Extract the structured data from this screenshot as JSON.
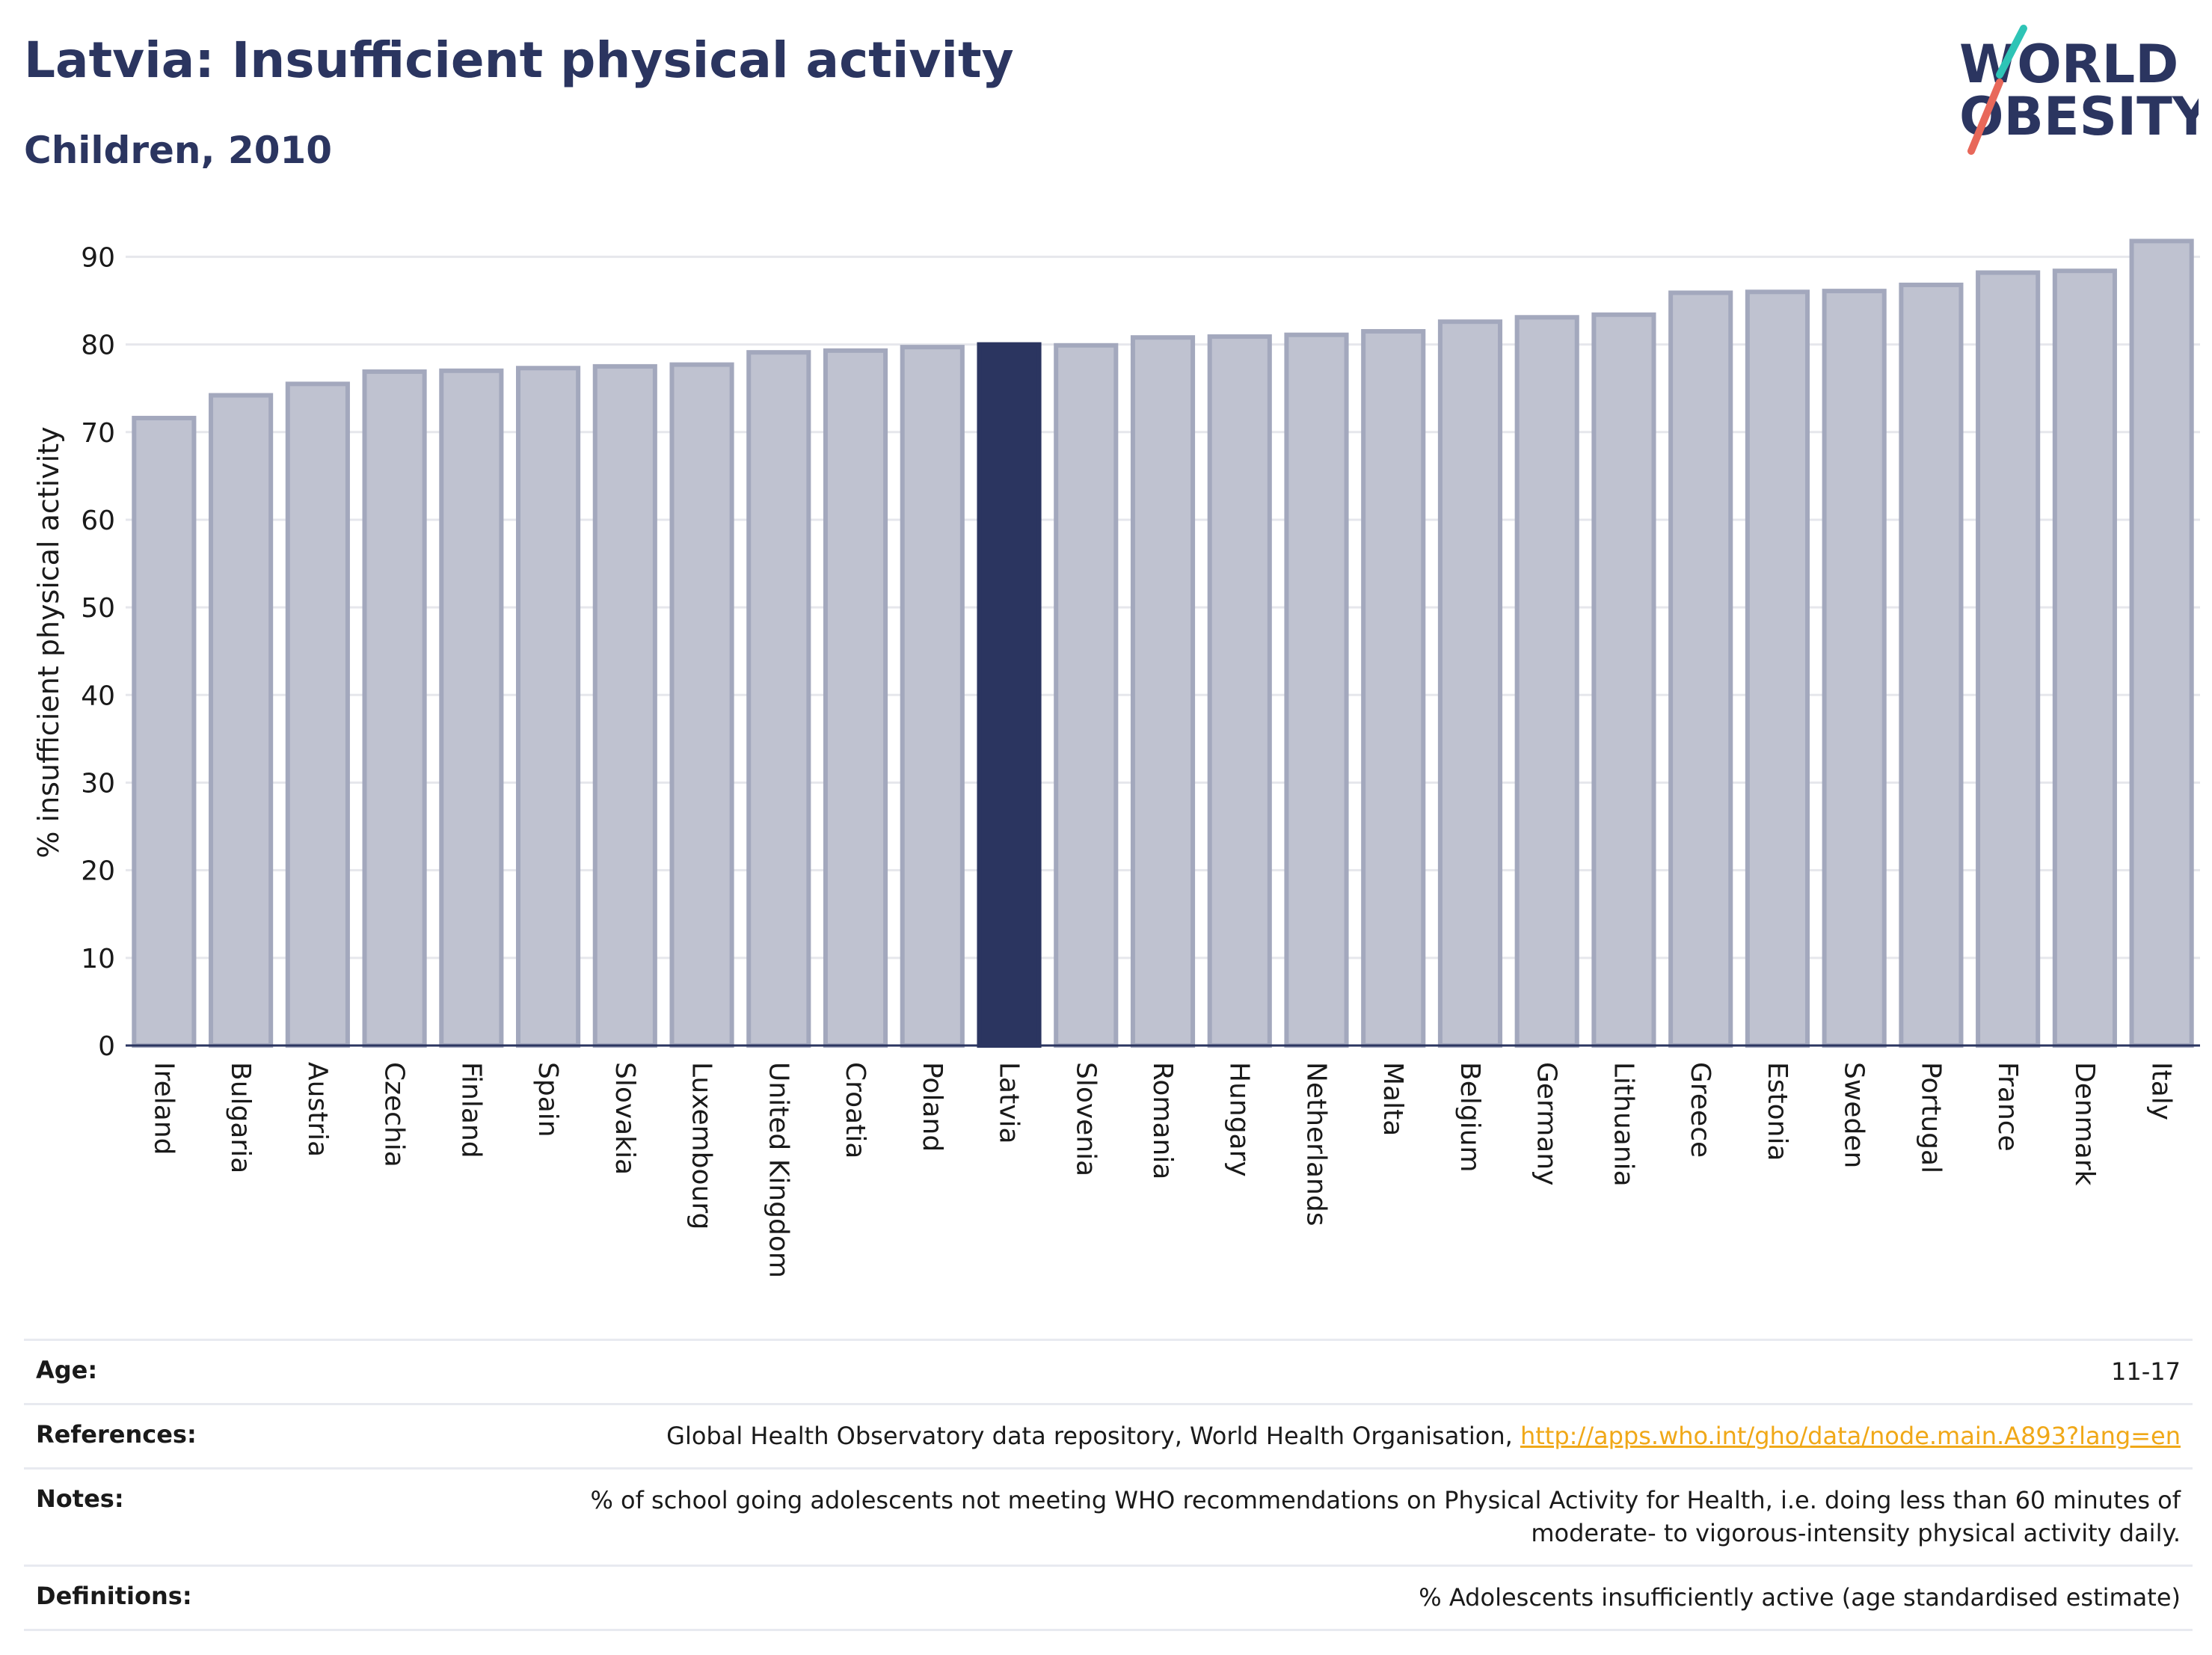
{
  "header": {
    "title": "Latvia: Insufficient physical activity",
    "subtitle": "Children, 2010"
  },
  "logo": {
    "line1": "WORLD",
    "line2": "OBESITY",
    "accent_colors": [
      "#2ec4b6",
      "#e8685a"
    ]
  },
  "colors": {
    "highlight": "#2b3560",
    "bar_fill": "#bfc2d0",
    "bar_stroke": "#a3a8bd",
    "grid": "#e6e7ec",
    "link": "#f0a818"
  },
  "chart_data": {
    "type": "bar",
    "title": "Latvia: Insufficient physical activity",
    "subtitle": "Children, 2010",
    "ylabel": "% insufficient physical activity",
    "xlabel": "",
    "ylim": [
      0,
      92
    ],
    "yticks": [
      0,
      10,
      20,
      30,
      40,
      50,
      60,
      70,
      80,
      90
    ],
    "grid": true,
    "highlight": "Latvia",
    "categories": [
      "Ireland",
      "Bulgaria",
      "Austria",
      "Czechia",
      "Finland",
      "Spain",
      "Slovakia",
      "Luxembourg",
      "United Kingdom",
      "Croatia",
      "Poland",
      "Latvia",
      "Slovenia",
      "Romania",
      "Hungary",
      "Netherlands",
      "Malta",
      "Belgium",
      "Germany",
      "Lithuania",
      "Greece",
      "Estonia",
      "Sweden",
      "Portugal",
      "France",
      "Denmark",
      "Italy"
    ],
    "values": [
      71.6,
      74.2,
      75.5,
      76.9,
      77.0,
      77.3,
      77.5,
      77.7,
      79.1,
      79.3,
      79.7,
      80.0,
      79.9,
      80.8,
      80.9,
      81.1,
      81.5,
      82.6,
      83.1,
      83.4,
      85.9,
      86.0,
      86.1,
      86.8,
      88.2,
      88.4,
      91.8
    ]
  },
  "info": [
    {
      "label": "Age:",
      "value": "11-17"
    },
    {
      "label": "References:",
      "value": "Global Health Observatory data repository, World Health Organisation, ",
      "link": "http://apps.who.int/gho/data/node.main.A893?lang=en"
    },
    {
      "label": "Notes:",
      "value": "% of school going adolescents not meeting WHO recommendations on Physical Activity for Health, i.e. doing less than 60 minutes of moderate- to vigorous-intensity physical activity daily."
    },
    {
      "label": "Definitions:",
      "value": "% Adolescents insufficiently active (age standardised estimate)"
    }
  ]
}
